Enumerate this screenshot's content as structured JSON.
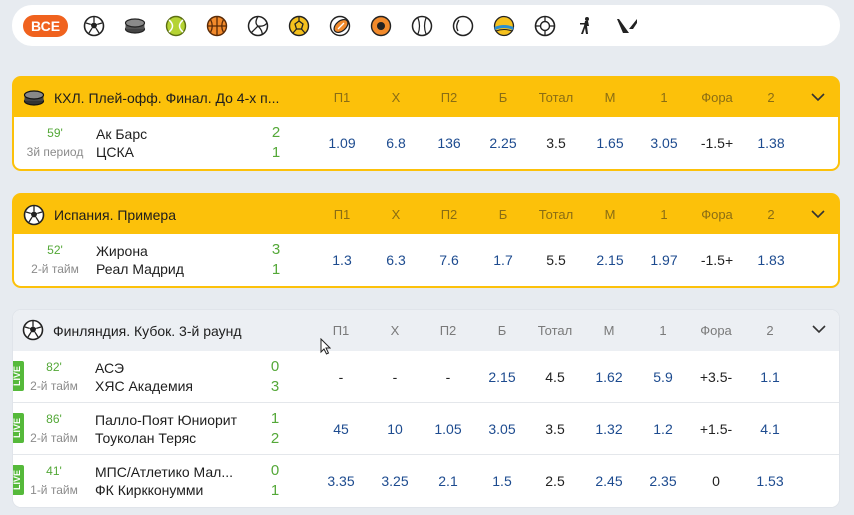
{
  "sports_bar": {
    "all_label": "ВСЕ",
    "icons": [
      "soccer-icon",
      "hockey-puck-icon",
      "tennis-icon",
      "basketball-icon",
      "volleyball-icon",
      "handball-icon",
      "american-football-icon",
      "basketball-alt-icon",
      "baseball-icon",
      "table-tennis-icon",
      "beach-volleyball-icon",
      "futsal-icon",
      "counter-strike-icon",
      "valorant-icon"
    ]
  },
  "columns": [
    "П1",
    "Х",
    "П2",
    "Б",
    "Тотал",
    "М",
    "1",
    "Фора",
    "2"
  ],
  "leagues": [
    {
      "icon": "hockey-puck-icon",
      "title": "КХЛ. Плей-офф. Финал. До 4-х п...",
      "matches": [
        {
          "minute": "59'",
          "period": "3й период",
          "team1": "Ак Барс",
          "team2": "ЦСКА",
          "score1": "2",
          "score2": "1",
          "odds": [
            "1.09",
            "6.8",
            "136",
            "2.25",
            "3.5",
            "1.65",
            "3.05",
            "-1.5+",
            "1.38"
          ],
          "live_tag": false
        }
      ]
    },
    {
      "icon": "soccer-icon",
      "title": "Испания. Примера",
      "matches": [
        {
          "minute": "52'",
          "period": "2-й тайм",
          "team1": "Жирона",
          "team2": "Реал Мадрид",
          "score1": "3",
          "score2": "1",
          "odds": [
            "1.3",
            "6.3",
            "7.6",
            "1.7",
            "5.5",
            "2.15",
            "1.97",
            "-1.5+",
            "1.83"
          ],
          "live_tag": false
        }
      ]
    },
    {
      "icon": "soccer-icon",
      "title": "Финляндия. Кубок. 3-й раунд",
      "matches": [
        {
          "minute": "82'",
          "period": "2-й тайм",
          "team1": "АСЭ",
          "team2": "ХЯС Академия",
          "score1": "0",
          "score2": "3",
          "odds": [
            "-",
            "-",
            "-",
            "2.15",
            "4.5",
            "1.62",
            "5.9",
            "+3.5-",
            "1.1"
          ],
          "live_tag": true
        },
        {
          "minute": "86'",
          "period": "2-й тайм",
          "team1": "Палло-Поят Юниорит",
          "team2": "Тоуколан Теряс",
          "score1": "1",
          "score2": "2",
          "odds": [
            "45",
            "10",
            "1.05",
            "3.05",
            "3.5",
            "1.32",
            "1.2",
            "+1.5-",
            "4.1"
          ],
          "live_tag": true
        },
        {
          "minute": "41'",
          "period": "1-й тайм",
          "team1": "МПС/Атлетико Мал...",
          "team2": "ФК Киркконумми",
          "score1": "0",
          "score2": "1",
          "odds": [
            "3.35",
            "3.25",
            "2.1",
            "1.5",
            "2.5",
            "2.45",
            "2.35",
            "0",
            "1.53"
          ],
          "live_tag": true
        }
      ]
    }
  ],
  "live_label": "LIVE",
  "colors": {
    "accent": "#fcc10a",
    "all_button": "#f0621e",
    "odds": "#1d4b8f",
    "score": "#54a838"
  }
}
